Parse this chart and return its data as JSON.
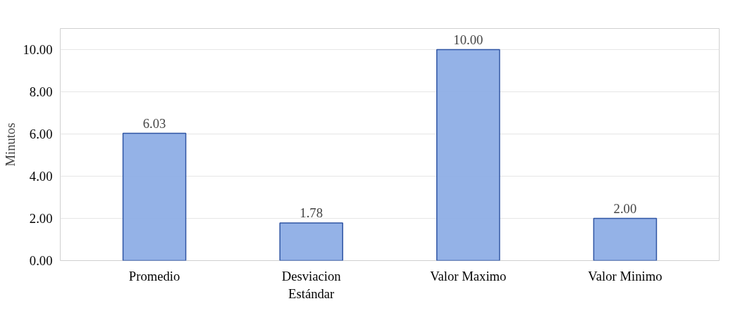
{
  "chart_data": {
    "type": "bar",
    "ylabel": "Minutos",
    "categories": [
      "Promedio",
      "Desviacion\nEstándar",
      "Valor Maximo",
      "Valor Minimo"
    ],
    "values": [
      6.03,
      1.78,
      10.0,
      2.0
    ],
    "value_labels": [
      "6.03",
      "1.78",
      "10.00",
      "2.00"
    ],
    "color": "#8eaee6",
    "ylim": [
      0,
      11
    ],
    "yticks": [
      {
        "value": 0,
        "label": "0.00"
      },
      {
        "value": 2,
        "label": "2.00"
      },
      {
        "value": 4,
        "label": "4.00"
      },
      {
        "value": 6,
        "label": "6.00"
      },
      {
        "value": 8,
        "label": "8.00"
      },
      {
        "value": 10,
        "label": "10.00"
      }
    ],
    "grid": "y"
  }
}
